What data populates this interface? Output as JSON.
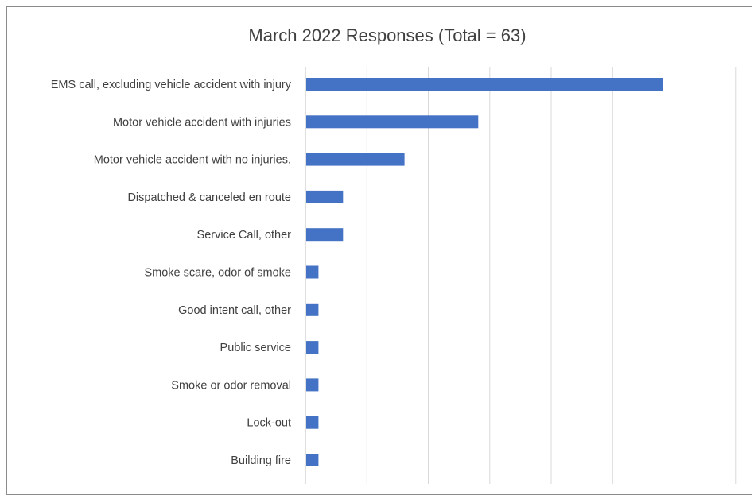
{
  "chart_data": {
    "type": "bar",
    "orientation": "horizontal",
    "title": "March 2022 Responses (Total = 63)",
    "categories": [
      "EMS call, excluding vehicle accident with injury",
      "Motor vehicle accident with injuries",
      "Motor vehicle accident with no injuries.",
      "Dispatched & canceled en route",
      "Service Call, other",
      "Smoke scare, odor of smoke",
      "Good intent call, other",
      "Public service",
      "Smoke or odor removal",
      "Lock-out",
      "Building fire"
    ],
    "values": [
      29,
      14,
      8,
      3,
      3,
      1,
      1,
      1,
      1,
      1,
      1
    ],
    "xlim": [
      0,
      35
    ],
    "grid": true,
    "legend": "none",
    "xlabel": "",
    "ylabel": "",
    "bar_color": "#4472c4"
  }
}
